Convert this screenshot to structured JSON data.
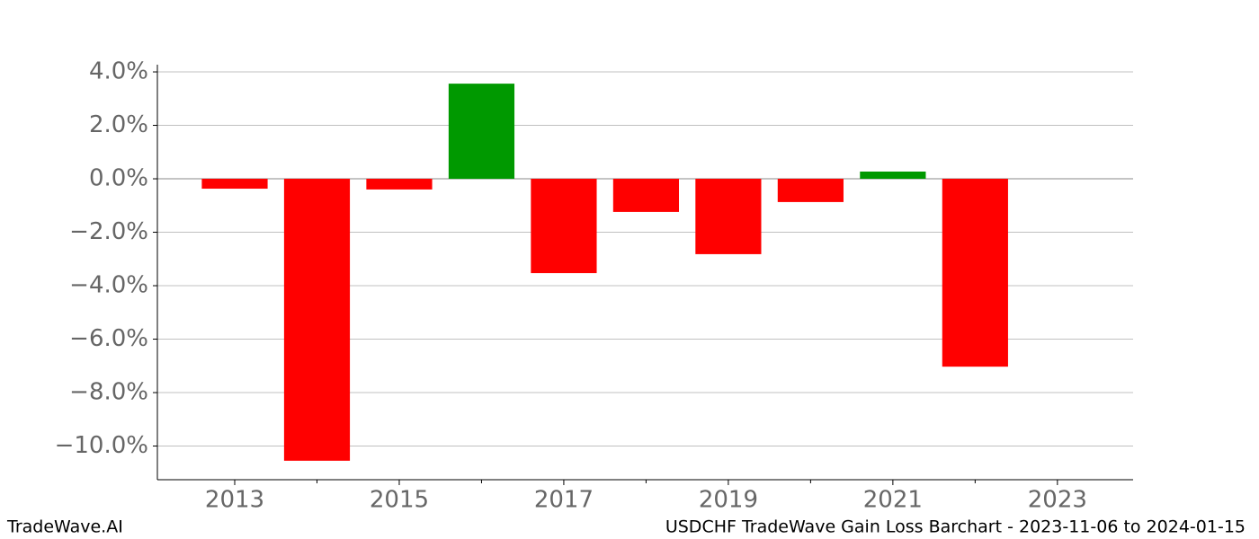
{
  "chart_data": {
    "type": "bar",
    "x": [
      2013,
      2014,
      2015,
      2016,
      2017,
      2018,
      2019,
      2020,
      2021,
      2022
    ],
    "values": [
      -0.37,
      -10.55,
      -0.4,
      3.56,
      -3.53,
      -1.24,
      -2.82,
      -0.87,
      0.27,
      -7.03
    ],
    "positive_color": "#009900",
    "negative_color": "#ff0000",
    "xlim": [
      2012.06,
      2023.92
    ],
    "xticks": [
      2013,
      2015,
      2017,
      2019,
      2021,
      2023
    ],
    "xminorticks": [
      2014,
      2016,
      2018,
      2020,
      2022
    ],
    "ylim": [
      -11.26,
      4.27
    ],
    "yticks": [
      {
        "value": 4,
        "label": "4.0%"
      },
      {
        "value": 2,
        "label": "2.0%"
      },
      {
        "value": 0,
        "label": "0.0%"
      },
      {
        "value": -2,
        "label": "−2.0%"
      },
      {
        "value": -4,
        "label": "−4.0%"
      },
      {
        "value": -6,
        "label": "−6.0%"
      },
      {
        "value": -8,
        "label": "−8.0%"
      },
      {
        "value": -10,
        "label": "−10.0%"
      }
    ],
    "grid": true,
    "watermark": "TradeWave.AI",
    "title": "USDCHF TradeWave Gain Loss Barchart - 2023-11-06 to 2024-01-15"
  }
}
